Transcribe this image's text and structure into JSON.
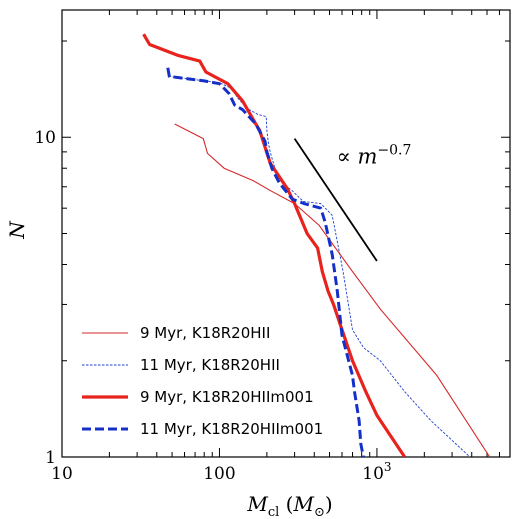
{
  "chart_data": {
    "type": "line",
    "title": "",
    "xlabel": "M_cl (M_⊙)",
    "ylabel": "N",
    "xscale": "log",
    "yscale": "log",
    "xlim": [
      10,
      7000
    ],
    "ylim": [
      1,
      25
    ],
    "x_ticks": [
      {
        "value": 10,
        "label": "10"
      },
      {
        "value": 100,
        "label": "100"
      },
      {
        "value": 1000,
        "label": "10³"
      }
    ],
    "y_ticks": [
      {
        "value": 1,
        "label": "1"
      },
      {
        "value": 10,
        "label": "10"
      }
    ],
    "grid": false,
    "legend_position": "bottom-left",
    "series": [
      {
        "name": "9 Myr, K18R20HII",
        "color": "#d62728",
        "style": "thin-solid",
        "x": [
          52,
          79,
          84,
          107,
          165,
          212,
          300,
          430,
          700,
          1050,
          2400,
          5200
        ],
        "y": [
          11,
          9.9,
          8.9,
          8.0,
          7.3,
          6.8,
          6.2,
          5.3,
          3.8,
          2.9,
          1.8,
          1.0
        ]
      },
      {
        "name": "11 Myr, K18R20HII",
        "color": "#1f3fd1",
        "style": "thin-dotted",
        "x": [
          47,
          48,
          100,
          120,
          130,
          150,
          175,
          198,
          200,
          205,
          210,
          225,
          250,
          290,
          340,
          440,
          520,
          610,
          700,
          820,
          1050,
          1500,
          2200,
          3900
        ],
        "y": [
          16,
          15.5,
          14.8,
          14.2,
          13.3,
          12.3,
          11.8,
          11.6,
          10.5,
          9.5,
          9.0,
          8.0,
          7.2,
          6.8,
          6.3,
          6.2,
          5.7,
          3.8,
          2.5,
          2.2,
          2.0,
          1.6,
          1.3,
          1.0
        ]
      },
      {
        "name": "9 Myr, K18R20HIIm001",
        "color": "#e8221c",
        "style": "thick-solid",
        "x": [
          33,
          36,
          55,
          75,
          82,
          113,
          140,
          170,
          180,
          210,
          270,
          300,
          360,
          420,
          450,
          490,
          530,
          600,
          700,
          850,
          1000,
          1500
        ],
        "y": [
          21,
          19.5,
          18.0,
          17.3,
          16.0,
          14.7,
          13.0,
          11.0,
          10.5,
          8.3,
          6.9,
          6.2,
          5.0,
          4.5,
          3.8,
          3.3,
          3.0,
          2.5,
          2.0,
          1.6,
          1.35,
          1.0
        ]
      },
      {
        "name": "11 Myr, K18R20HIIm001",
        "color": "#1530c8",
        "style": "thick-dashed",
        "x": [
          47,
          48,
          80,
          100,
          115,
          125,
          140,
          170,
          195,
          200,
          215,
          240,
          290,
          345,
          440,
          470,
          520,
          560,
          600,
          700,
          720,
          770,
          790,
          820
        ],
        "y": [
          16.5,
          15.5,
          15.0,
          14.7,
          13.7,
          12.6,
          12.2,
          11.0,
          9.7,
          9.0,
          8.0,
          7.2,
          6.4,
          6.2,
          6.0,
          5.4,
          4.3,
          3.3,
          2.4,
          1.8,
          1.6,
          1.3,
          1.1,
          1.0
        ]
      }
    ],
    "annotations": [
      {
        "type": "reference-line",
        "label": "∝ m^−0.7",
        "x": [
          300,
          1000
        ],
        "y": [
          9.9,
          4.1
        ]
      }
    ]
  }
}
